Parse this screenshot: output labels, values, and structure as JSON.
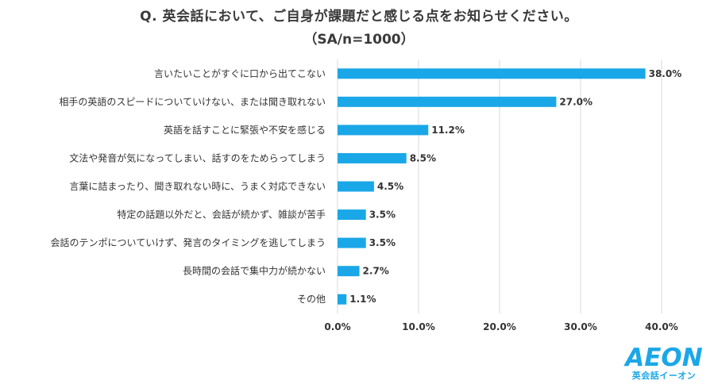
{
  "title": "Q. 英会話において、ご自身が課題だと感じる点をお知らせください。",
  "subtitle": "（SA/n=1000）",
  "logo": {
    "brand": "AEON",
    "tagline": "英会話イーオン",
    "color": "#1aa7e8"
  },
  "chart_data": {
    "type": "bar",
    "orientation": "horizontal",
    "categories": [
      "言いたいことがすぐに口から出てこない",
      "相手の英語のスピードについていけない、または聞き取れない",
      "英語を話すことに緊張や不安を感じる",
      "文法や発音が気になってしまい、話すのをためらってしまう",
      "言葉に詰まったり、聞き取れない時に、うまく対応できない",
      "特定の話題以外だと、会話が続かず、雑談が苦手",
      "会話のテンポについていけず、発言のタイミングを逃してしまう",
      "長時間の会話で集中力が続かない",
      "その他"
    ],
    "values": [
      38.0,
      27.0,
      11.2,
      8.5,
      4.5,
      3.5,
      3.5,
      2.7,
      1.1
    ],
    "value_labels": [
      "38.0%",
      "27.0%",
      "11.2%",
      "8.5%",
      "4.5%",
      "3.5%",
      "3.5%",
      "2.7%",
      "1.1%"
    ],
    "xlim": [
      0,
      40
    ],
    "xticks": [
      0,
      10,
      20,
      30,
      40
    ],
    "xtick_labels": [
      "0.0%",
      "10.0%",
      "20.0%",
      "30.0%",
      "40.0%"
    ],
    "bar_color": "#1aa7e8",
    "grid": true,
    "grid_color": "#d9d9d9"
  }
}
